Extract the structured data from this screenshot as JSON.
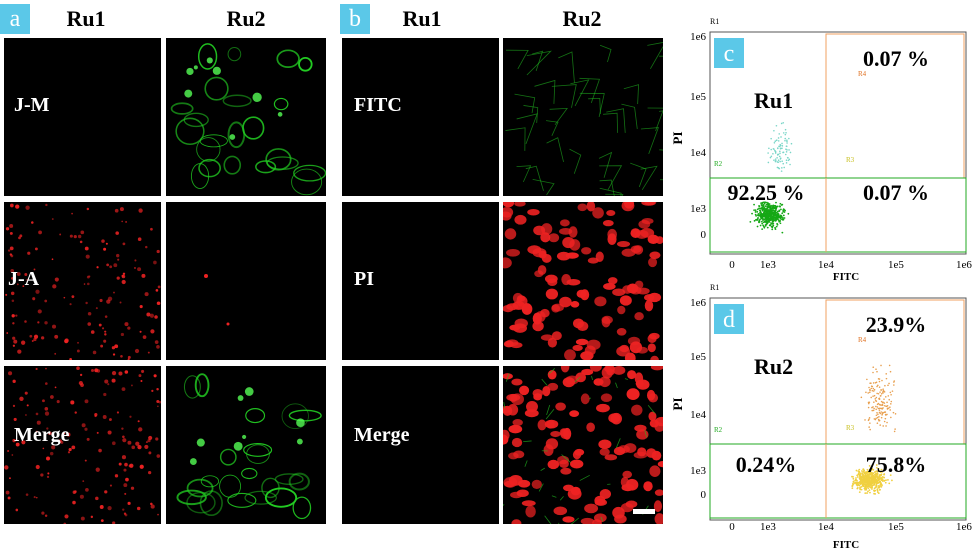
{
  "panels": {
    "a": {
      "letter": "a",
      "col1": "Ru1",
      "col2": "Ru2",
      "rows": [
        "J-M",
        "J-A",
        "Merge"
      ]
    },
    "b": {
      "letter": "b",
      "col1": "Ru1",
      "col2": "Ru2",
      "rows": [
        "FITC",
        "PI",
        "Merge"
      ]
    }
  },
  "facs": {
    "c": {
      "letter": "c",
      "r1": "R1",
      "sample": "Ru1",
      "q_upper_right": "0.07 %",
      "q_lower_left": "92.25 %",
      "q_lower_right": "0.07 %",
      "q_upper_left": "",
      "gates": {
        "r2": "R2",
        "r3": "R3",
        "r4": "R4"
      },
      "xlabel": "FITC",
      "ylabel": "PI",
      "xticks": [
        "0",
        "1e3",
        "1e4",
        "1e5",
        "1e6"
      ],
      "yticks": [
        "0",
        "1e3",
        "1e4",
        "1e5",
        "1e6"
      ]
    },
    "d": {
      "letter": "d",
      "r1": "R1",
      "sample": "Ru2",
      "q_upper_right": "23.9%",
      "q_lower_left": "0.24%",
      "q_lower_right": "75.8%",
      "gates": {
        "r2": "R2",
        "r3": "R3",
        "r4": "R4"
      },
      "xlabel": "FITC",
      "ylabel": "PI",
      "xticks": [
        "0",
        "1e3",
        "1e4",
        "1e5",
        "1e6"
      ],
      "yticks": [
        "0",
        "1e3",
        "1e4",
        "1e5",
        "1e6"
      ]
    }
  },
  "colors": {
    "panel_letter_bg": "#5bc8e8",
    "green": "#22cc22",
    "red": "#ee2222",
    "gate_orange": "#f0a060",
    "gate_green": "#22aa22"
  }
}
